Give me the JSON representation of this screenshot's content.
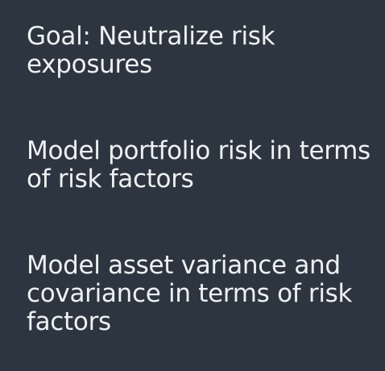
{
  "slide": {
    "points": [
      "Goal: Neutralize risk exposures",
      "Model portfolio risk in terms of risk factors",
      "Model asset variance and covariance in terms of risk factors"
    ],
    "colors": {
      "background": "#2d3640",
      "text": "#eef1f4"
    }
  }
}
